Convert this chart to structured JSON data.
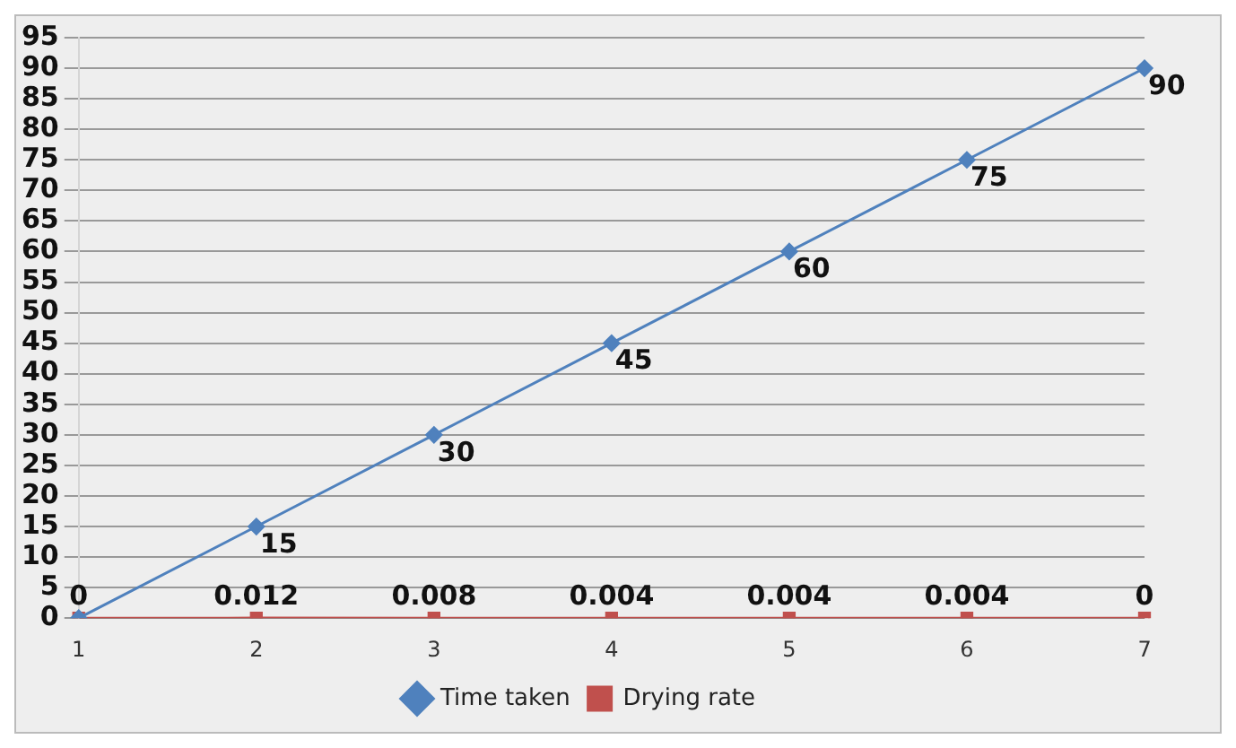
{
  "chart_data": {
    "type": "line",
    "categories": [
      "1",
      "2",
      "3",
      "4",
      "5",
      "6",
      "7"
    ],
    "series": [
      {
        "name": "Time taken",
        "color": "#4f81bd",
        "marker": "diamond",
        "values": [
          0,
          15,
          30,
          45,
          60,
          75,
          90
        ],
        "value_labels": [
          null,
          "15",
          "30",
          "45",
          "60",
          "75",
          "90"
        ]
      },
      {
        "name": "Drying rate",
        "color": "#c0504d",
        "marker": "square",
        "values": [
          0,
          0.012,
          0.008,
          0.004,
          0.004,
          0.004,
          0
        ],
        "value_labels": [
          "0",
          "0.012",
          "0.008",
          "0.004",
          "0.004",
          "0.004",
          "0"
        ]
      }
    ],
    "ylim": [
      0,
      95
    ],
    "yticks": [
      0,
      5,
      10,
      15,
      20,
      25,
      30,
      35,
      40,
      45,
      50,
      55,
      60,
      65,
      70,
      75,
      80,
      85,
      90,
      95
    ],
    "grid": "y",
    "legend": "bottom",
    "line_style": "solid"
  }
}
